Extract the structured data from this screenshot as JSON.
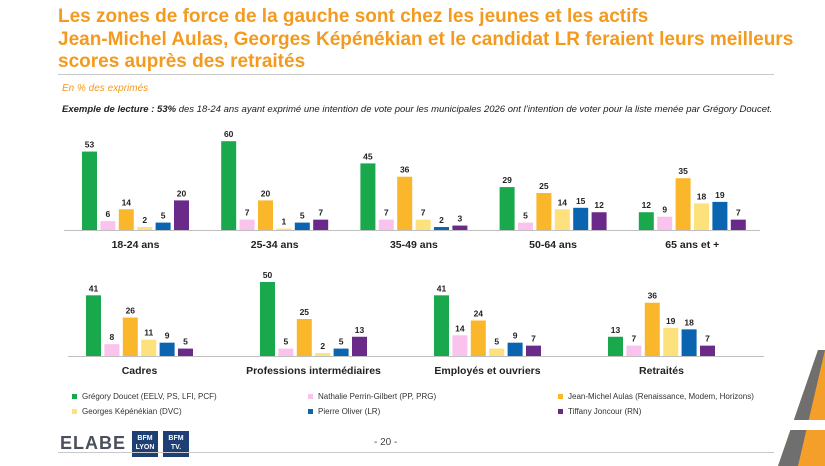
{
  "title": {
    "line1": "Les zones de force de la gauche sont chez les jeunes et les actifs",
    "line2": "Jean-Michel Aulas, Georges Képénékian et le candidat LR feraient leurs meilleurs",
    "line3": "scores auprès des retraités"
  },
  "unit_note": "En % des exprimés",
  "reading_example": {
    "lead": "Exemple de lecture : 53%",
    "text": " des 18-24 ans ayant exprimé une intention de vote pour les municipales 2026 ont l’intention de voter pour la liste menée par Grégory Doucet."
  },
  "footer": {
    "logo": "ELABE",
    "bfm_lyon": "BFM LYON",
    "bfm_tv": "BFM TV.",
    "page_number": "- 20 -"
  },
  "colors": {
    "doucet": "#1aa84d",
    "perrin": "#f9c3ee",
    "aulas": "#fbb72c",
    "kepenekian": "#fde17d",
    "oliver": "#0b64b0",
    "joncour": "#6a2a8a",
    "title": "#f39a1f"
  },
  "chart_data": {
    "type": "bar",
    "series_names": [
      "Grégory Doucet (EELV, PS, LFI, PCF)",
      "Nathalie Perrin-Gilbert (PP, PRG)",
      "Jean-Michel Aulas (Renaissance, Modem, Horizons)",
      "Georges Képénékian (DVC)",
      "Pierre Oliver (LR)",
      "Tiffany Joncour (RN)"
    ],
    "groups": [
      {
        "label": "18-24 ans",
        "values": [
          53,
          6,
          14,
          2,
          5,
          20
        ]
      },
      {
        "label": "25-34 ans",
        "values": [
          60,
          7,
          20,
          1,
          5,
          7
        ]
      },
      {
        "label": "35-49 ans",
        "values": [
          45,
          7,
          36,
          7,
          2,
          3
        ]
      },
      {
        "label": "50-64 ans",
        "values": [
          29,
          5,
          25,
          14,
          15,
          12
        ]
      },
      {
        "label": "65 ans et +",
        "values": [
          12,
          9,
          35,
          18,
          19,
          7
        ]
      },
      {
        "label": "Cadres",
        "values": [
          41,
          8,
          26,
          11,
          9,
          5
        ]
      },
      {
        "label": "Professions intermédiaires",
        "values": [
          50,
          5,
          25,
          2,
          5,
          13
        ]
      },
      {
        "label": "Employés et ouvriers",
        "values": [
          41,
          14,
          24,
          5,
          9,
          7
        ]
      },
      {
        "label": "Retraités",
        "values": [
          13,
          7,
          36,
          19,
          18,
          7
        ]
      }
    ]
  }
}
